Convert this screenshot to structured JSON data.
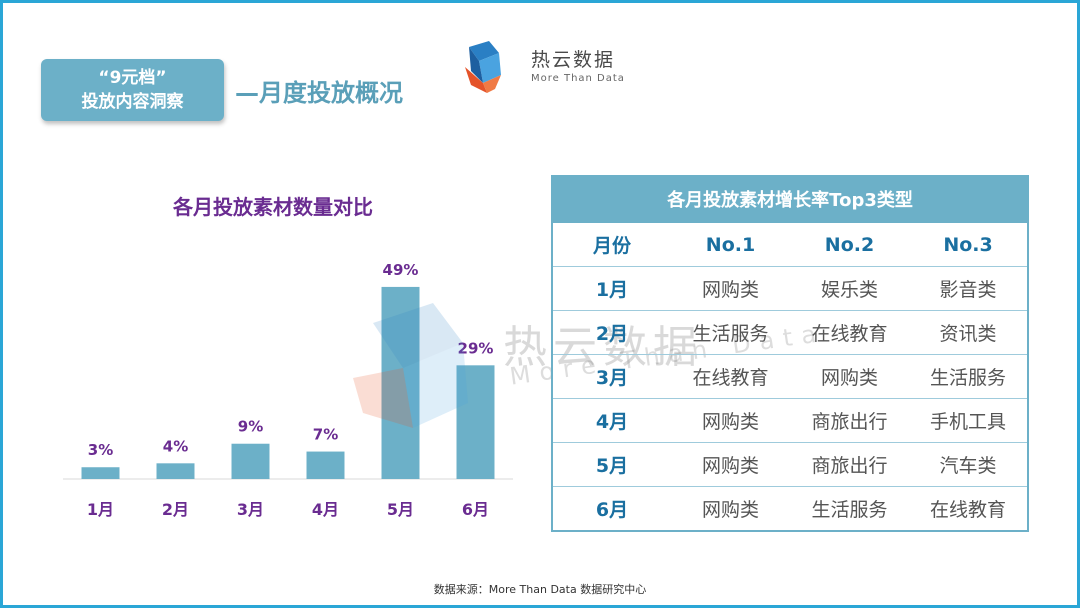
{
  "header": {
    "label_line1": "“9元档”",
    "label_line2": "投放内容洞察",
    "title": "—月度投放概况"
  },
  "logo": {
    "name": "热云数据",
    "tagline": "More Than Data"
  },
  "watermark": {
    "text": "热云数据",
    "sub": "More Than Data"
  },
  "chart_data": {
    "type": "bar",
    "title": "各月投放素材数量对比",
    "categories": [
      "1月",
      "2月",
      "3月",
      "4月",
      "5月",
      "6月"
    ],
    "values": [
      3,
      4,
      9,
      7,
      49,
      29
    ],
    "data_labels": [
      "3%",
      "4%",
      "9%",
      "7%",
      "49%",
      "29%"
    ],
    "ylim": [
      0,
      50
    ],
    "grid": false,
    "bar_color": "#6cb0c8",
    "label_color": "#6a2c91"
  },
  "table": {
    "title": "各月投放素材增长率Top3类型",
    "headers": [
      "月份",
      "No.1",
      "No.2",
      "No.3"
    ],
    "rows": [
      [
        "1月",
        "网购类",
        "娱乐类",
        "影音类"
      ],
      [
        "2月",
        "生活服务",
        "在线教育",
        "资讯类"
      ],
      [
        "3月",
        "在线教育",
        "网购类",
        "生活服务"
      ],
      [
        "4月",
        "网购类",
        "商旅出行",
        "手机工具"
      ],
      [
        "5月",
        "网购类",
        "商旅出行",
        "汽车类"
      ],
      [
        "6月",
        "网购类",
        "生活服务",
        "在线教育"
      ]
    ]
  },
  "footer": {
    "source": "数据来源：More Than Data 数据研究中心"
  },
  "colors": {
    "frame": "#2aa6d6",
    "accent": "#6cb0c8",
    "purple": "#6a2c91",
    "blue_text": "#1a6fa0"
  }
}
